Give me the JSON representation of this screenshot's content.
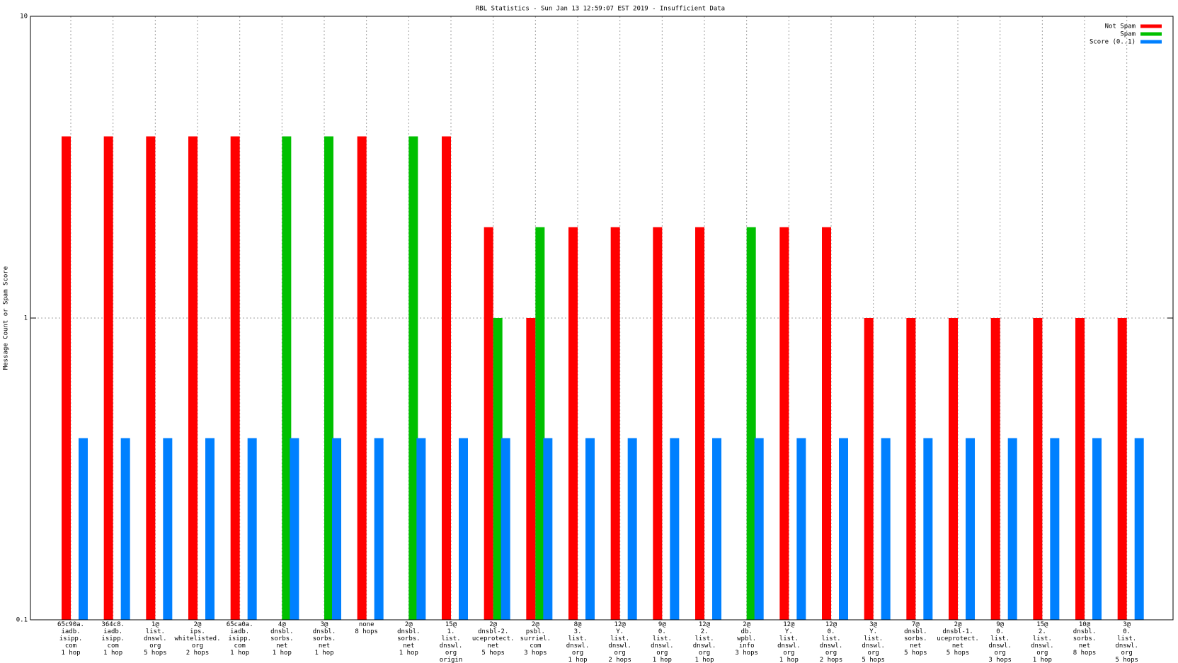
{
  "chart_data": {
    "type": "bar",
    "title": "RBL Statistics - Sun Jan 13 12:59:07 EST 2019 - Insufficient Data",
    "y_label": "Message Count or Spam Score",
    "categories": [
      "65c90a.\niadb.\nisipp.\ncom\n1 hop",
      "364c8.\niadb.\nisipp.\ncom\n1 hop",
      "1@\nlist.\ndnswl.\norg\n5 hops",
      "2@\nips.\nwhitelisted.\norg\n2 hops",
      "65ca0a.\niadb.\nisipp.\ncom\n1 hop",
      "4@\ndnsbl.\nsorbs.\nnet\n1 hop",
      "3@\ndnsbl.\nsorbs.\nnet\n1 hop",
      "none\n8 hops",
      "2@\ndnsbl.\nsorbs.\nnet\n1 hop",
      "15@\n1.\nlist.\ndnswl.\norg\norigin",
      "2@\ndnsbl-2.\nuceprotect.\nnet\n5 hops",
      "2@\npsbl.\nsurriel.\ncom\n3 hops",
      "8@\n3.\nlist.\ndnswl.\norg\n1 hop",
      "12@\nY.\nlist.\ndnswl.\norg\n2 hops",
      "9@\n0.\nlist.\ndnswl.\norg\n1 hop",
      "12@\n2.\nlist.\ndnswl.\norg\n1 hop",
      "2@\ndb.\nwpbl.\ninfo\n3 hops",
      "12@\nY.\nlist.\ndnswl.\norg\n1 hop",
      "12@\n0.\nlist.\ndnswl.\norg\n2 hops",
      "3@\nY.\nlist.\ndnswl.\norg\n5 hops",
      "7@\ndnsbl.\nsorbs.\nnet\n5 hops",
      "2@\ndnsbl-1.\nuceprotect.\nnet\n5 hops",
      "9@\n0.\nlist.\ndnswl.\norg\n3 hops",
      "15@\n2.\nlist.\ndnswl.\norg\n1 hop",
      "10@\ndnsbl.\nsorbs.\nnet\n8 hops",
      "3@\n0.\nlist.\ndnswl.\norg\n5 hops"
    ],
    "series": [
      {
        "name": "Not Spam",
        "color": "#ff0000",
        "values": [
          4,
          4,
          4,
          4,
          4,
          null,
          null,
          4,
          null,
          4,
          2,
          1,
          2,
          2,
          2,
          2,
          null,
          2,
          2,
          1,
          1,
          1,
          1,
          1,
          1,
          1
        ]
      },
      {
        "name": "Spam",
        "color": "#00c000",
        "values": [
          null,
          null,
          null,
          null,
          null,
          4,
          4,
          null,
          4,
          null,
          1,
          2,
          null,
          null,
          null,
          null,
          2,
          null,
          null,
          null,
          null,
          null,
          null,
          null,
          null,
          null
        ]
      },
      {
        "name": "Score (0..1)",
        "color": "#0080ff",
        "values": [
          0.4,
          0.4,
          0.4,
          0.4,
          0.4,
          0.4,
          0.4,
          0.4,
          0.4,
          0.4,
          0.4,
          0.4,
          0.4,
          0.4,
          0.4,
          0.4,
          0.4,
          0.4,
          0.4,
          0.4,
          0.4,
          0.4,
          0.4,
          0.4,
          0.4,
          0.4
        ]
      }
    ],
    "log_scale": true,
    "ylim": [
      0.1,
      10
    ],
    "yticks": [
      0.1,
      1,
      10
    ],
    "grid": true,
    "legend": "top-right"
  }
}
